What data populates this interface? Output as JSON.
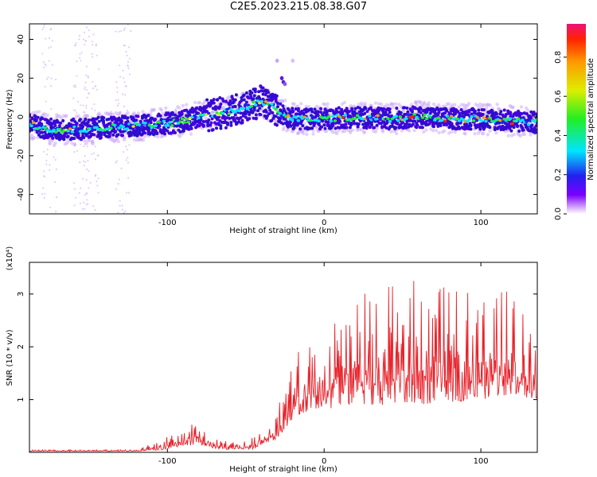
{
  "title": "C2E5.2023.215.08.38.G07",
  "chart_data": [
    {
      "type": "heatmap",
      "xlabel": "Height of straight line (km)",
      "ylabel": "Frequency (Hz)",
      "xlim": [
        -188,
        136
      ],
      "ylim": [
        -50,
        48
      ],
      "xticks": [
        -100,
        0,
        100
      ],
      "yticks": [
        -40,
        -20,
        0,
        20,
        40
      ],
      "ridge": {
        "x": [
          -188,
          -170,
          -150,
          -130,
          -110,
          -95,
          -80,
          -65,
          -50,
          -40,
          -33,
          -28,
          -20,
          0,
          20,
          40,
          60,
          80,
          100,
          120,
          136
        ],
        "y": [
          -4,
          -7,
          -6,
          -5,
          -4,
          -3,
          0,
          2,
          5,
          8,
          5,
          2,
          -1,
          -1,
          0,
          -1,
          0,
          -1,
          -1,
          -2,
          -3
        ]
      },
      "colorbar": {
        "label": "Normalized spectral amplitude",
        "ticks": [
          "0.0",
          "0.2",
          "0.4",
          "0.6",
          "0.8"
        ],
        "range": [
          0,
          0.97
        ]
      }
    },
    {
      "type": "line",
      "xlabel": "Height of straight line (km)",
      "ylabel": "SNR (10 * v/v)",
      "multiplier": "(x10⁴)",
      "xlim": [
        -188,
        136
      ],
      "ylim": [
        0,
        3.6
      ],
      "xticks": [
        -100,
        0,
        100
      ],
      "yticks": [
        1,
        2,
        3
      ],
      "series": [
        {
          "color": "#e8222a",
          "envelope_x": [
            -188,
            -120,
            -100,
            -90,
            -80,
            -75,
            -70,
            -60,
            -45,
            -40,
            -35,
            -30,
            -25,
            -20,
            -10,
            0,
            10,
            20,
            40,
            60,
            80,
            100,
            120,
            136
          ],
          "envelope_low": [
            0.02,
            0.02,
            0.05,
            0.12,
            0.15,
            0.1,
            0.05,
            0.05,
            0.06,
            0.15,
            0.2,
            0.25,
            0.45,
            0.6,
            0.8,
            0.85,
            0.8,
            0.9,
            0.9,
            0.9,
            0.95,
            1.0,
            1.1,
            1.0
          ],
          "envelope_high": [
            0.05,
            0.05,
            0.3,
            0.45,
            0.6,
            0.45,
            0.25,
            0.2,
            0.3,
            0.5,
            0.6,
            0.9,
            1.2,
            1.8,
            2.1,
            2.4,
            2.7,
            3.0,
            3.2,
            3.3,
            3.1,
            3.2,
            3.1,
            2.3
          ]
        }
      ]
    }
  ]
}
